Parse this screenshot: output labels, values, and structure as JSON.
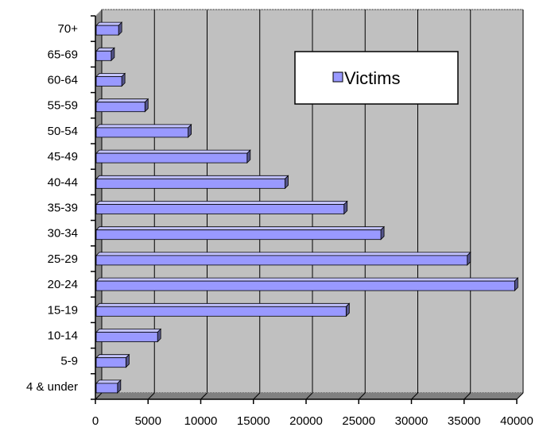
{
  "chart_data": {
    "type": "bar",
    "orientation": "horizontal",
    "categories": [
      "4 & under",
      "5-9",
      "10-14",
      "15-19",
      "20-24",
      "25-29",
      "30-34",
      "35-39",
      "40-44",
      "45-49",
      "50-54",
      "55-59",
      "60-64",
      "65-69",
      "70+"
    ],
    "series": [
      {
        "name": "Victims",
        "values": [
          2100,
          2900,
          5900,
          23800,
          39800,
          35300,
          27100,
          23600,
          18000,
          14400,
          8800,
          4700,
          2500,
          1500,
          2200
        ]
      }
    ],
    "x_ticks": [
      "0",
      "5000",
      "10000",
      "15000",
      "20000",
      "25000",
      "30000",
      "35000",
      "40000"
    ],
    "xlim": [
      0,
      40000
    ],
    "legend": {
      "position": "top-right",
      "label": "Victims"
    },
    "grid": true,
    "colors": {
      "bar_front": "#9999ff",
      "bar_top": "#c3c3ff",
      "bar_side": "#55558a",
      "plot_background": "#c0c0c0",
      "grid": "#000000"
    }
  }
}
